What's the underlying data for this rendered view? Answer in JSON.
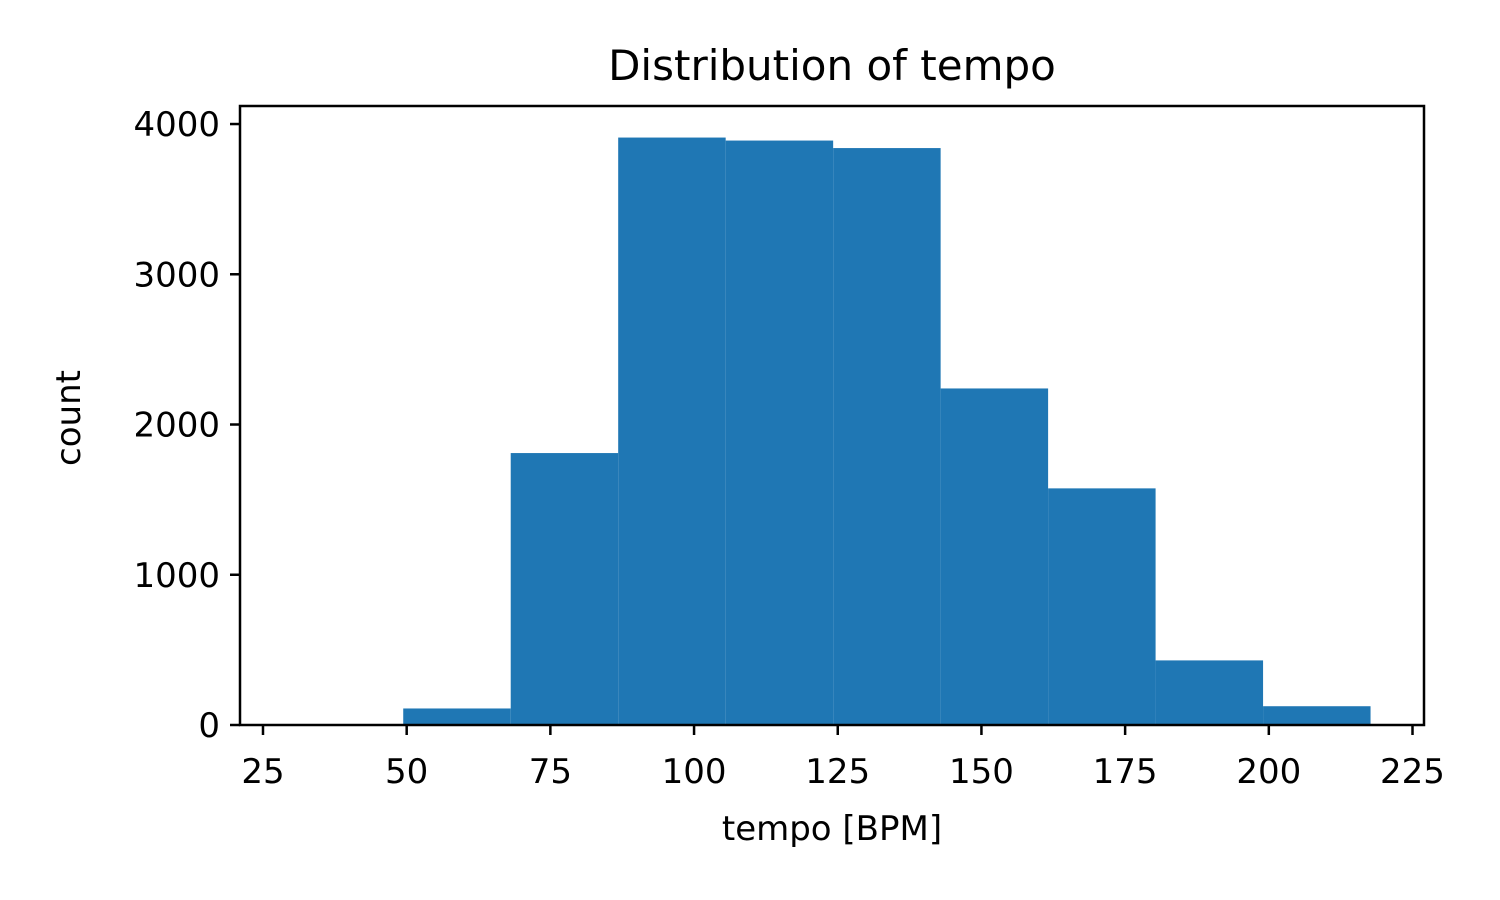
{
  "chart_data": {
    "type": "bar",
    "histogram": true,
    "title": "Distribution of tempo",
    "xlabel": "tempo [BPM]",
    "ylabel": "count",
    "xlim": [
      21,
      227
    ],
    "ylim": [
      0,
      4120
    ],
    "xticks": [
      25,
      50,
      75,
      100,
      125,
      150,
      175,
      200,
      225
    ],
    "yticks": [
      0,
      1000,
      2000,
      3000,
      4000
    ],
    "bin_edges": [
      49.4,
      68.1,
      86.8,
      105.5,
      124.2,
      142.9,
      161.6,
      180.3,
      199.0,
      217.7
    ],
    "values": [
      110,
      1810,
      3910,
      3890,
      3840,
      2240,
      1575,
      430,
      125
    ],
    "color": "#1f77b4",
    "grid": false,
    "legend": null
  }
}
